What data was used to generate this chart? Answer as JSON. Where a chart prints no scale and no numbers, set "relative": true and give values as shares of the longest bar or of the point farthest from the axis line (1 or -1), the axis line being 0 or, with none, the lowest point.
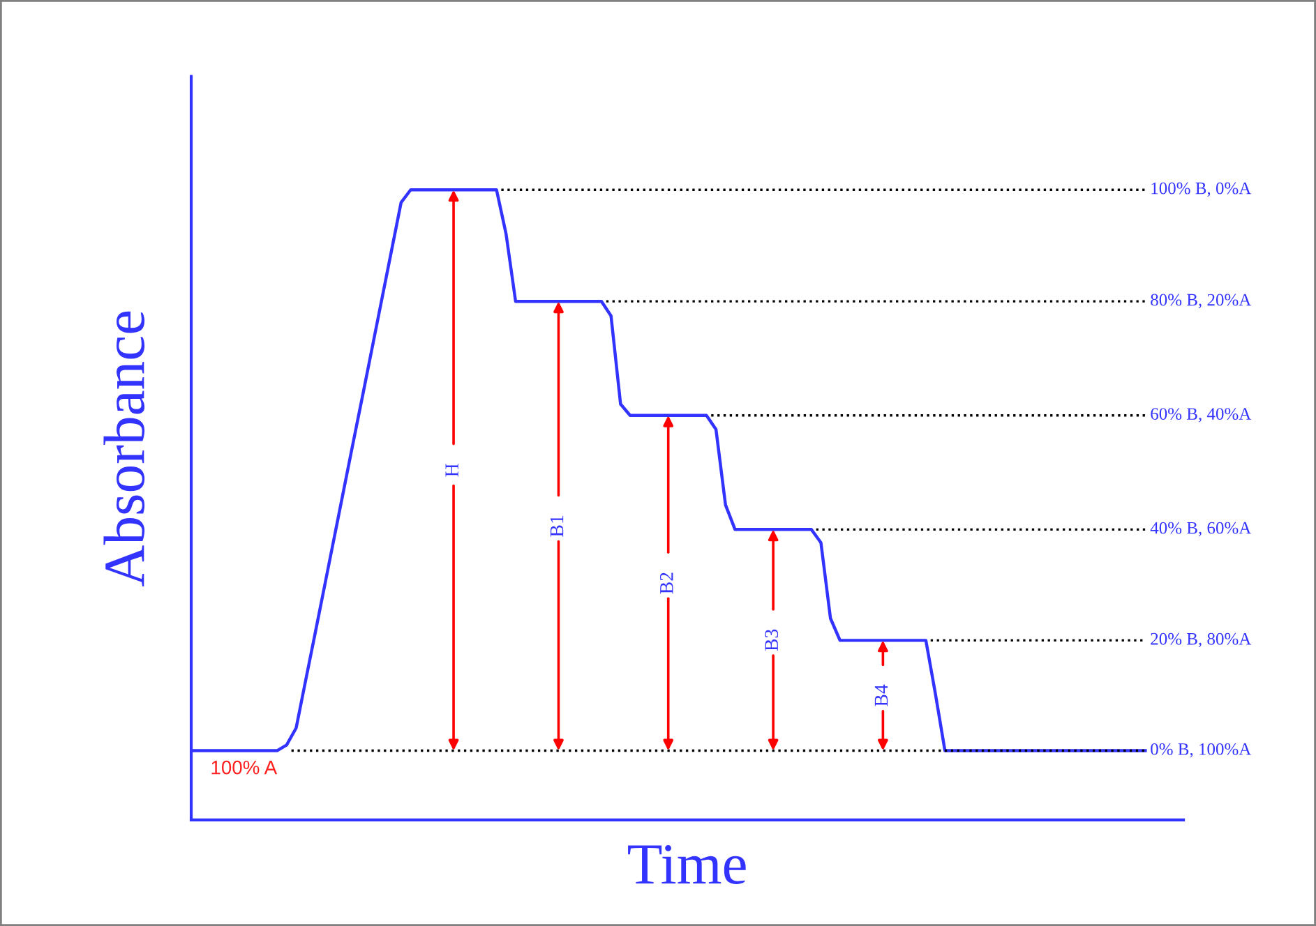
{
  "chart_data": {
    "type": "line",
    "relative": true,
    "xlabel": "Time",
    "ylabel": "Absorbance",
    "categories": [
      null,
      null,
      null,
      null,
      null,
      null,
      null,
      null,
      null,
      null,
      null,
      null,
      null,
      null,
      null,
      null,
      null,
      null,
      null,
      null,
      null,
      null,
      null,
      null,
      null,
      null,
      null,
      null,
      null,
      null,
      null,
      null,
      null,
      null,
      null,
      null,
      null,
      null,
      null,
      null,
      null,
      null,
      null,
      null,
      null,
      null,
      null,
      null,
      null,
      null,
      null,
      null,
      null,
      null,
      null,
      null,
      null,
      null,
      null,
      null,
      null,
      null,
      null,
      null,
      null,
      null,
      null,
      null,
      null,
      null,
      null,
      null,
      null,
      null,
      null,
      null,
      null,
      null,
      null,
      null,
      null,
      null,
      null,
      null,
      null,
      null,
      null,
      null,
      null,
      null,
      null,
      null,
      null,
      null,
      null,
      null,
      null,
      null,
      null,
      null,
      null
    ],
    "series": [
      {
        "color": "#3333ff",
        "values": [
          0.11,
          0.11,
          0.11,
          0.11,
          0.11,
          0.11,
          0.11,
          0.11,
          0.11,
          0.11,
          0.119,
          0.146,
          0.222,
          0.297,
          0.373,
          0.449,
          0.525,
          0.601,
          0.676,
          0.752,
          0.828,
          0.904,
          0.98,
          1.0,
          1.0,
          1.0,
          1.0,
          1.0,
          1.0,
          1.0,
          1.0,
          1.0,
          1.0,
          0.93,
          0.823,
          0.823,
          0.823,
          0.823,
          0.823,
          0.823,
          0.823,
          0.823,
          0.823,
          0.823,
          0.8,
          0.66,
          0.642,
          0.642,
          0.642,
          0.642,
          0.642,
          0.642,
          0.642,
          0.642,
          0.642,
          0.62,
          0.5,
          0.461,
          0.461,
          0.461,
          0.461,
          0.461,
          0.461,
          0.461,
          0.461,
          0.461,
          0.44,
          0.32,
          0.285,
          0.285,
          0.285,
          0.285,
          0.285,
          0.285,
          0.285,
          0.285,
          0.285,
          0.285,
          0.2,
          0.11,
          0.11,
          0.11,
          0.11,
          0.11,
          0.11,
          0.11,
          0.11,
          0.11,
          0.11,
          0.11,
          0.11,
          0.11,
          0.11,
          0.11,
          0.11,
          0.11,
          0.11,
          0.11,
          0.11,
          0.11,
          0.11
        ]
      }
    ],
    "ref_lines": [
      {
        "axis": "y",
        "value": 1.0,
        "label": "100% B, 0%A",
        "color": "#000000",
        "line_style": "dotted"
      },
      {
        "axis": "y",
        "value": 0.823,
        "label": "80% B, 20%A",
        "color": "#000000",
        "line_style": "dotted"
      },
      {
        "axis": "y",
        "value": 0.642,
        "label": "60% B, 40%A",
        "color": "#000000",
        "line_style": "dotted"
      },
      {
        "axis": "y",
        "value": 0.461,
        "label": "40% B, 60%A",
        "color": "#000000",
        "line_style": "dotted"
      },
      {
        "axis": "y",
        "value": 0.285,
        "label": "20% B, 80%A",
        "color": "#000000",
        "line_style": "dotted"
      },
      {
        "axis": "y",
        "value": 0.11,
        "label": "0% B, 100%A",
        "color": "#000000",
        "line_style": "dotted"
      }
    ],
    "annotations": [
      {
        "text": "100% A",
        "y": 0.11
      },
      {
        "text": "H",
        "y": 1.0
      },
      {
        "text": "B1",
        "y": 0.823
      },
      {
        "text": "B2",
        "y": 0.642
      },
      {
        "text": "B3",
        "y": 0.461
      },
      {
        "text": "B4",
        "y": 0.285
      }
    ],
    "legend": false,
    "marker": "none",
    "line_style": "solid"
  }
}
